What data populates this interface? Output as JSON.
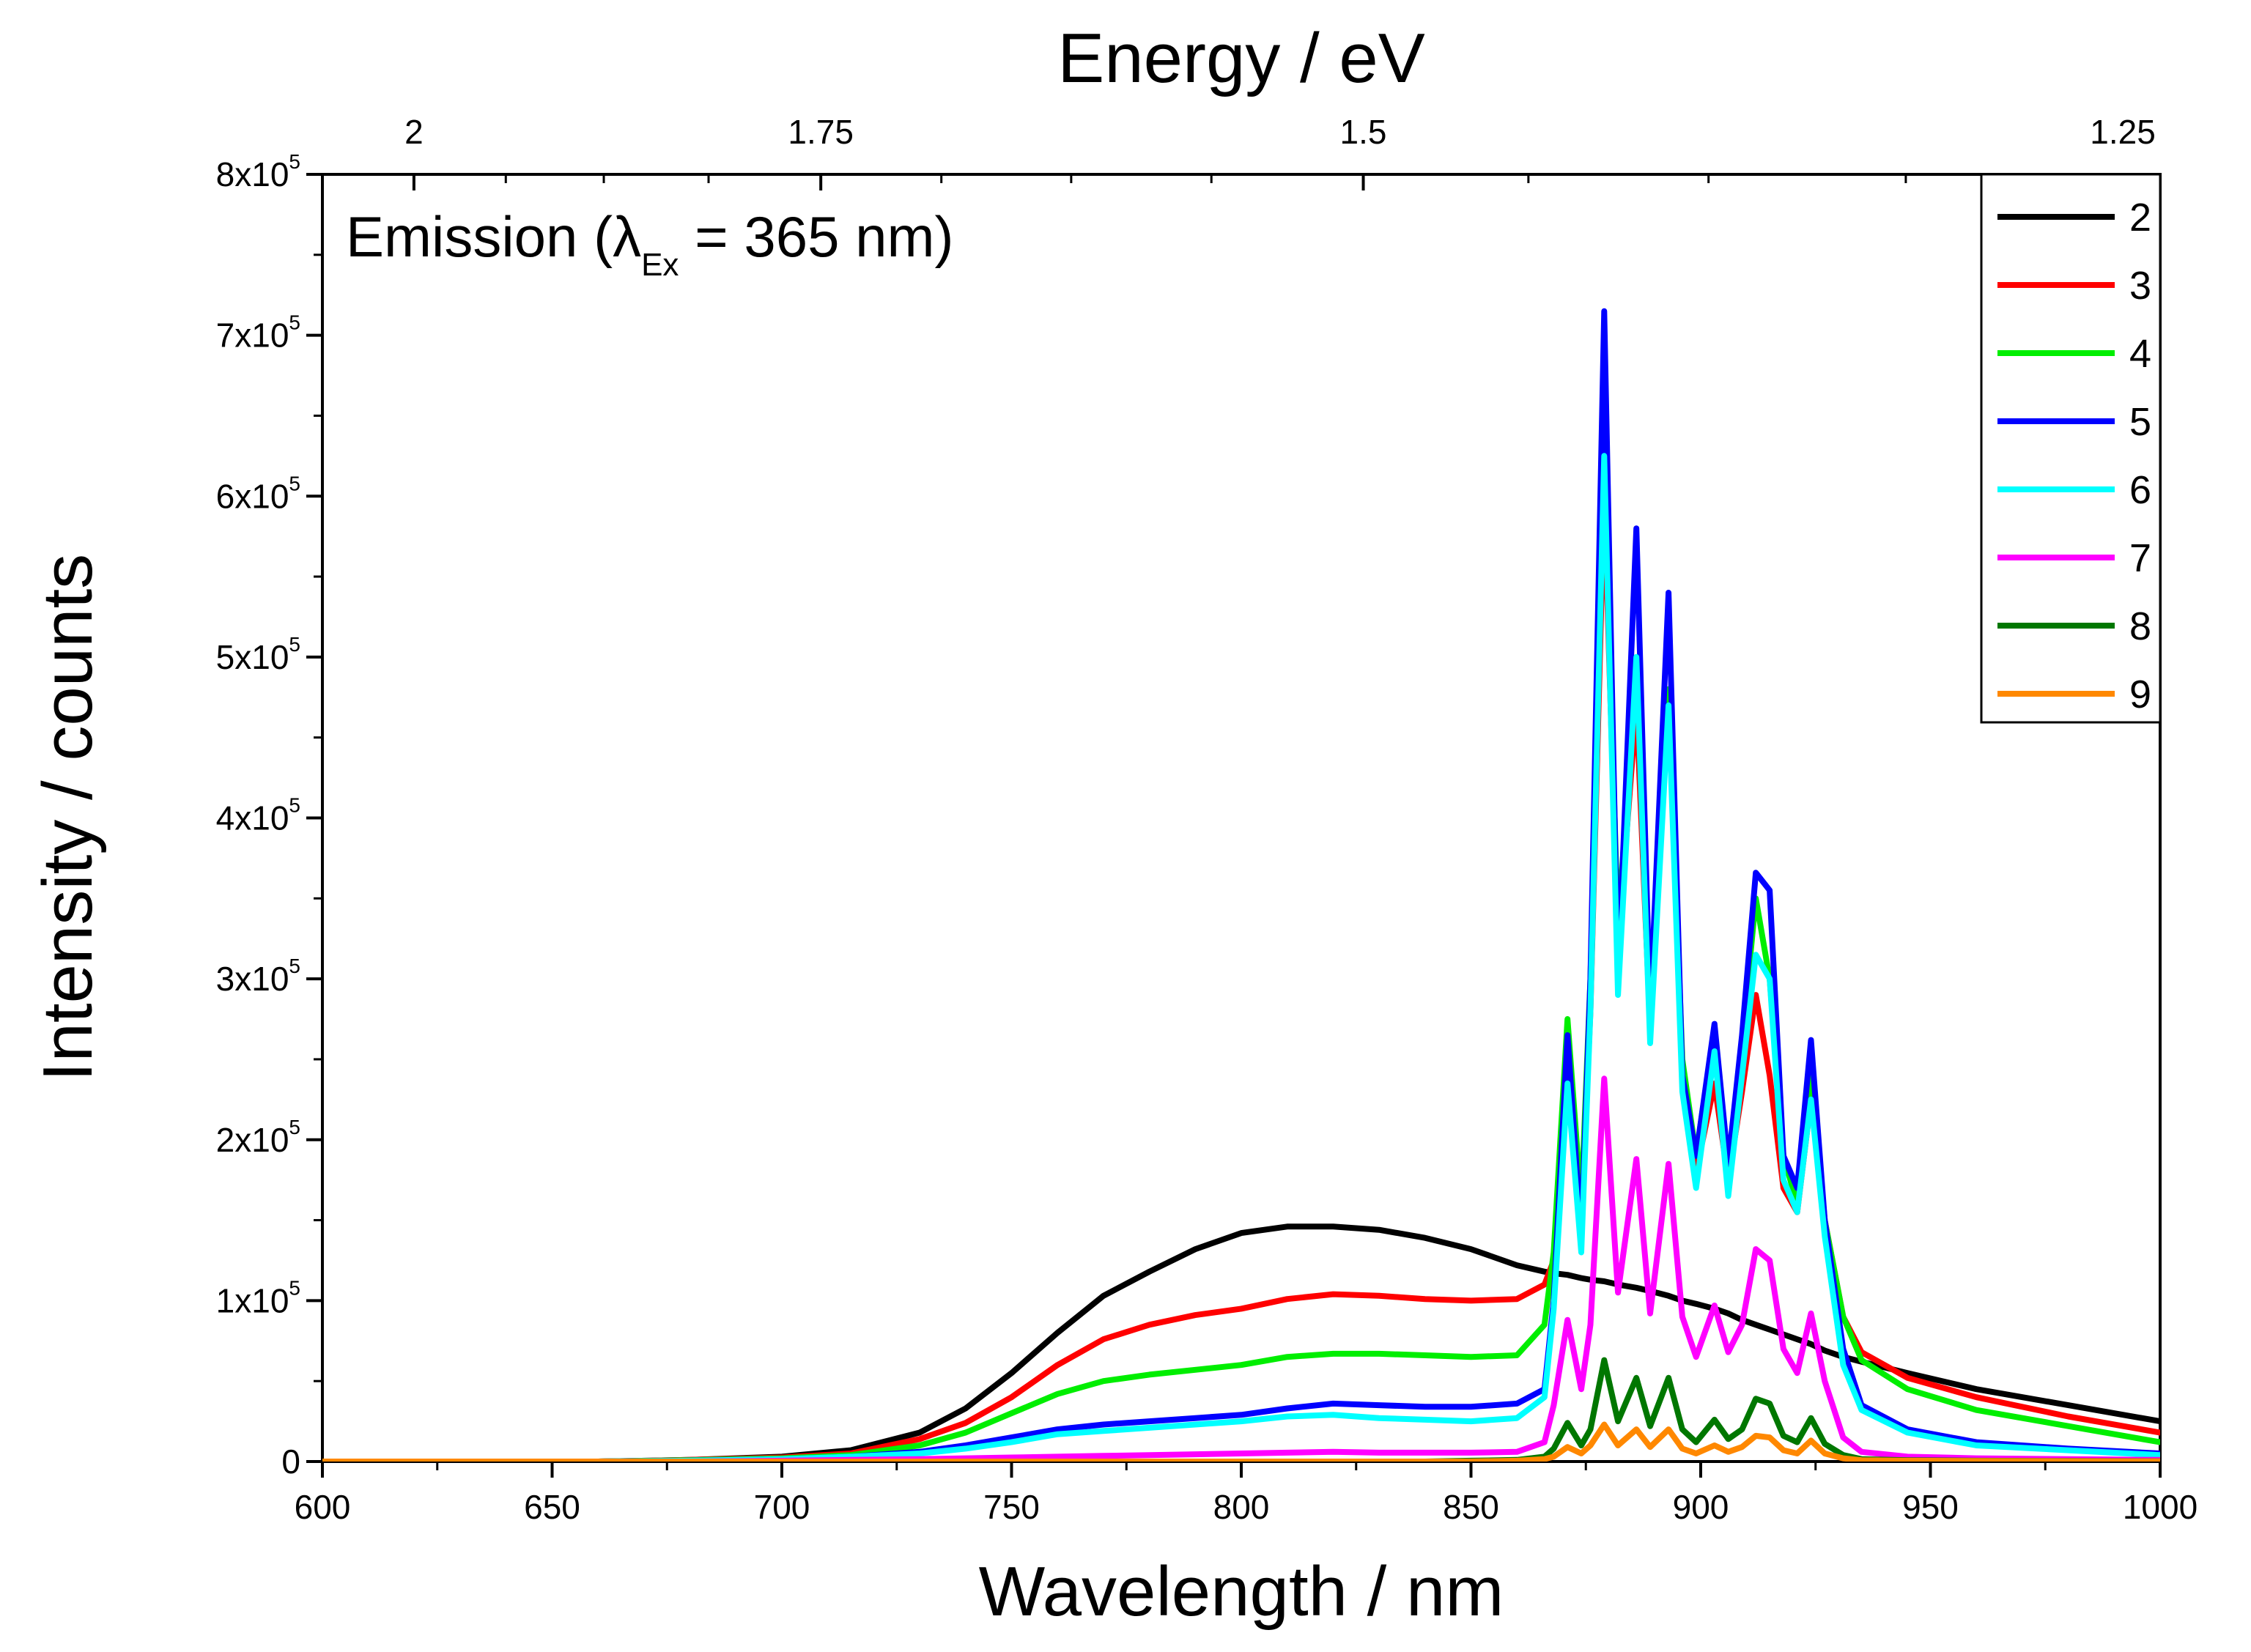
{
  "chart_data": {
    "type": "line",
    "title": "",
    "xlabel": "Wavelength / nm",
    "ylabel": "Intensity / counts",
    "top_xlabel": "Energy / eV",
    "xlim": [
      600,
      1000
    ],
    "ylim": [
      0,
      800000
    ],
    "x_ticks": [
      600,
      650,
      700,
      750,
      800,
      850,
      900,
      950,
      1000
    ],
    "x_tick_labels": [
      "600",
      "650",
      "700",
      "750",
      "800",
      "850",
      "900",
      "950",
      "1000"
    ],
    "y_ticks": [
      0,
      100000,
      200000,
      300000,
      400000,
      500000,
      600000,
      700000,
      800000
    ],
    "y_tick_labels": [
      {
        "base": "0",
        "exp": ""
      },
      {
        "base": "1x10",
        "exp": "5"
      },
      {
        "base": "2x10",
        "exp": "5"
      },
      {
        "base": "3x10",
        "exp": "5"
      },
      {
        "base": "4x10",
        "exp": "5"
      },
      {
        "base": "5x10",
        "exp": "5"
      },
      {
        "base": "6x10",
        "exp": "5"
      },
      {
        "base": "7x10",
        "exp": "5"
      },
      {
        "base": "8x10",
        "exp": "5"
      }
    ],
    "top_ticks_eV": [
      2,
      1.75,
      1.5,
      1.25
    ],
    "top_tick_labels": [
      "2",
      "1.75",
      "1.5",
      "1.25"
    ],
    "annotation": {
      "prefix": "Emission (λ",
      "subscript": "Ex",
      "suffix": " = 365 nm)"
    },
    "legend_position": "top-right",
    "grid": false,
    "x": [
      600,
      660,
      680,
      700,
      715,
      730,
      740,
      750,
      760,
      770,
      780,
      790,
      800,
      810,
      820,
      830,
      840,
      850,
      860,
      866,
      868,
      871,
      874,
      876,
      879,
      882,
      886,
      889,
      893,
      896,
      899,
      903,
      906,
      909,
      912,
      915,
      918,
      921,
      924,
      927,
      931,
      935,
      945,
      960,
      980,
      1000
    ],
    "series": [
      {
        "name": "2",
        "color": "#000000",
        "values": [
          0,
          0,
          1000,
          3000,
          7000,
          18000,
          33000,
          55000,
          80000,
          103000,
          118000,
          132000,
          142000,
          146000,
          146000,
          144000,
          139000,
          132000,
          122000,
          118000,
          117000,
          116000,
          114000,
          113000,
          112000,
          110000,
          108000,
          106000,
          103000,
          100000,
          98000,
          95000,
          92000,
          88000,
          85000,
          82000,
          79000,
          76000,
          73000,
          69000,
          65000,
          62000,
          55000,
          45000,
          35000,
          25000
        ]
      },
      {
        "name": "3",
        "color": "#ff0000",
        "values": [
          0,
          0,
          1000,
          2500,
          5000,
          14000,
          24000,
          40000,
          60000,
          76000,
          85000,
          91000,
          95000,
          101000,
          104000,
          103000,
          101000,
          100000,
          101000,
          110000,
          125000,
          250000,
          150000,
          280000,
          600000,
          320000,
          470000,
          270000,
          480000,
          240000,
          180000,
          235000,
          175000,
          230000,
          290000,
          240000,
          170000,
          155000,
          225000,
          150000,
          90000,
          68000,
          52000,
          40000,
          28000,
          18000
        ]
      },
      {
        "name": "4",
        "color": "#00ee00",
        "values": [
          0,
          0,
          800,
          2000,
          4000,
          10000,
          18000,
          30000,
          42000,
          50000,
          54000,
          57000,
          60000,
          65000,
          67000,
          67000,
          66000,
          65000,
          66000,
          85000,
          130000,
          275000,
          160000,
          300000,
          620000,
          330000,
          500000,
          290000,
          480000,
          250000,
          190000,
          270000,
          180000,
          260000,
          350000,
          300000,
          190000,
          160000,
          240000,
          150000,
          90000,
          63000,
          45000,
          32000,
          22000,
          12000
        ]
      },
      {
        "name": "5",
        "color": "#0000ff",
        "values": [
          0,
          0,
          500,
          1500,
          3000,
          6000,
          10000,
          15000,
          20000,
          23000,
          25000,
          27000,
          29000,
          33000,
          36000,
          35000,
          34000,
          34000,
          36000,
          45000,
          100000,
          265000,
          140000,
          300000,
          715000,
          300000,
          580000,
          280000,
          540000,
          240000,
          190000,
          272000,
          185000,
          265000,
          366000,
          355000,
          190000,
          170000,
          262000,
          150000,
          70000,
          35000,
          20000,
          12000,
          8000,
          5000
        ]
      },
      {
        "name": "6",
        "color": "#00ffff",
        "values": [
          0,
          0,
          500,
          1500,
          3000,
          5000,
          8000,
          12000,
          17000,
          19000,
          21000,
          23000,
          25000,
          28000,
          29000,
          27000,
          26000,
          25000,
          27000,
          40000,
          95000,
          235000,
          130000,
          280000,
          625000,
          290000,
          500000,
          260000,
          470000,
          230000,
          170000,
          255000,
          165000,
          240000,
          315000,
          300000,
          175000,
          155000,
          225000,
          140000,
          60000,
          32000,
          18000,
          10000,
          7000,
          4000
        ]
      },
      {
        "name": "7",
        "color": "#ff00ff",
        "values": [
          0,
          0,
          0,
          500,
          1000,
          1500,
          2000,
          2500,
          3000,
          3500,
          4000,
          4500,
          5000,
          5500,
          6000,
          5500,
          5500,
          5500,
          6000,
          12000,
          35000,
          88000,
          45000,
          85000,
          238000,
          105000,
          188000,
          92000,
          185000,
          90000,
          65000,
          97000,
          68000,
          85000,
          132000,
          125000,
          70000,
          55000,
          92000,
          50000,
          15000,
          6000,
          3000,
          2000,
          1500,
          1000
        ]
      },
      {
        "name": "8",
        "color": "#007700",
        "values": [
          0,
          0,
          0,
          0,
          0,
          0,
          0,
          0,
          0,
          0,
          0,
          0,
          0,
          0,
          0,
          0,
          0,
          500,
          1000,
          3000,
          8000,
          24000,
          10000,
          20000,
          63000,
          25000,
          52000,
          22000,
          52000,
          20000,
          12000,
          26000,
          14000,
          20000,
          39000,
          36000,
          16000,
          12000,
          27000,
          11000,
          4000,
          1500,
          800,
          500,
          300,
          200
        ]
      },
      {
        "name": "9",
        "color": "#ff8800",
        "values": [
          0,
          0,
          0,
          0,
          0,
          0,
          0,
          0,
          0,
          0,
          0,
          0,
          0,
          0,
          0,
          0,
          0,
          0,
          500,
          1500,
          3000,
          9000,
          5000,
          10000,
          23000,
          10000,
          20000,
          9000,
          20000,
          8000,
          5000,
          10000,
          6000,
          9000,
          16000,
          15000,
          7000,
          5000,
          13000,
          5000,
          2000,
          800,
          500,
          300,
          200,
          100
        ]
      }
    ]
  }
}
